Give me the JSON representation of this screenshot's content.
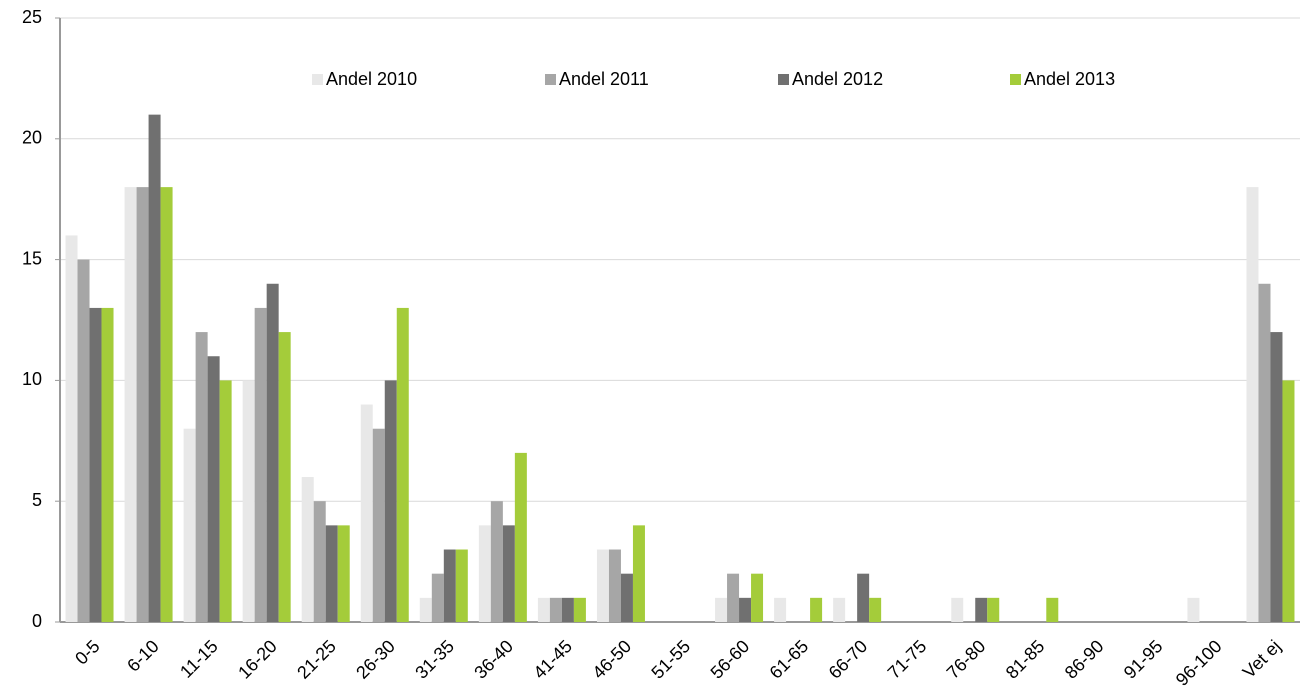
{
  "chart_data": {
    "type": "bar",
    "categories": [
      "0-5",
      "6-10",
      "11-15",
      "16-20",
      "21-25",
      "26-30",
      "31-35",
      "36-40",
      "41-45",
      "46-50",
      "51-55",
      "56-60",
      "61-65",
      "66-70",
      "71-75",
      "76-80",
      "81-85",
      "86-90",
      "91-95",
      "96-100",
      "Vet ej"
    ],
    "series": [
      {
        "name": "Andel 2010",
        "color": "#e8e8e8",
        "values": [
          16,
          18,
          8,
          10,
          6,
          9,
          1,
          4,
          1,
          3,
          0,
          1,
          1,
          1,
          0,
          1,
          0,
          0,
          0,
          1,
          18
        ]
      },
      {
        "name": "Andel 2011",
        "color": "#a6a6a6",
        "values": [
          15,
          18,
          12,
          13,
          5,
          8,
          2,
          5,
          1,
          3,
          0,
          2,
          0,
          0,
          0,
          0,
          0,
          0,
          0,
          0,
          14
        ]
      },
      {
        "name": "Andel 2012",
        "color": "#707070",
        "values": [
          13,
          21,
          11,
          14,
          4,
          10,
          3,
          4,
          1,
          2,
          0,
          1,
          0,
          2,
          0,
          1,
          0,
          0,
          0,
          0,
          12
        ]
      },
      {
        "name": "Andel 2013",
        "color": "#a4cc3a",
        "values": [
          13,
          18,
          10,
          12,
          4,
          13,
          3,
          7,
          1,
          4,
          0,
          2,
          1,
          1,
          0,
          1,
          1,
          0,
          0,
          0,
          10
        ]
      }
    ],
    "ylim": [
      0,
      25
    ],
    "yticks": [
      0,
      5,
      10,
      15,
      20,
      25
    ],
    "grid": true,
    "legend": "top"
  }
}
